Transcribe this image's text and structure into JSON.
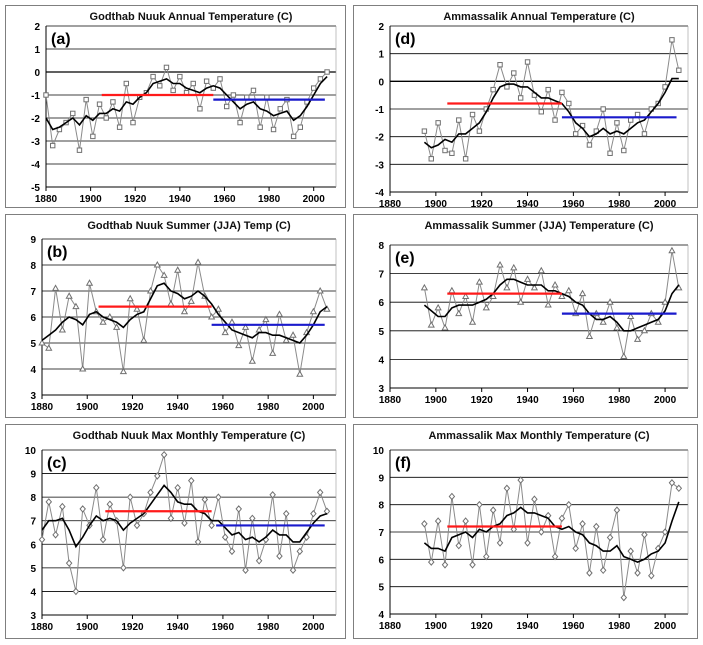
{
  "colors": {
    "mean_early": "#ff1a1a",
    "mean_late": "#1a1acc",
    "line_smooth": "#000000",
    "line_raw": "#8a8a8a",
    "marker": "#707070",
    "grid": "#000000"
  },
  "chart_data": [
    {
      "id": "a",
      "label": "(a)",
      "title": "Godthab Nuuk Annual Temperature (C)",
      "type": "line",
      "xlim": [
        1880,
        2010
      ],
      "ylim": [
        -5,
        2
      ],
      "xticks": [
        "1880",
        "1900",
        "1920",
        "1940",
        "1960",
        "1980",
        "2000"
      ],
      "yticks": [
        "-5",
        "-4",
        "-3",
        "-2",
        "-1",
        "0",
        "1",
        "2"
      ],
      "marker": "square",
      "grid": true,
      "x": [
        1880,
        1883,
        1886,
        1889,
        1892,
        1895,
        1898,
        1901,
        1904,
        1907,
        1910,
        1913,
        1916,
        1919,
        1922,
        1925,
        1928,
        1931,
        1934,
        1937,
        1940,
        1943,
        1946,
        1949,
        1952,
        1955,
        1958,
        1961,
        1964,
        1967,
        1970,
        1973,
        1976,
        1979,
        1982,
        1985,
        1988,
        1991,
        1994,
        1997,
        2000,
        2003,
        2006
      ],
      "series": [
        {
          "role": "annual",
          "values": [
            -1.0,
            -3.2,
            -2.5,
            -2.2,
            -1.8,
            -3.4,
            -1.2,
            -2.8,
            -1.4,
            -2.0,
            -1.3,
            -2.4,
            -0.5,
            -2.2,
            -1.1,
            -0.9,
            -0.2,
            -0.6,
            0.2,
            -0.8,
            -0.2,
            -0.9,
            -0.5,
            -1.6,
            -0.4,
            -0.7,
            -0.3,
            -1.5,
            -1.0,
            -2.2,
            -1.1,
            -0.8,
            -2.4,
            -1.1,
            -2.5,
            -1.6,
            -1.2,
            -2.8,
            -2.4,
            -1.3,
            -0.7,
            -0.3,
            0.0
          ]
        },
        {
          "role": "smoothed",
          "values": [
            -2.0,
            -2.5,
            -2.4,
            -2.2,
            -2.0,
            -2.3,
            -1.9,
            -2.1,
            -1.8,
            -1.8,
            -1.6,
            -1.7,
            -1.3,
            -1.4,
            -1.1,
            -0.9,
            -0.5,
            -0.4,
            -0.3,
            -0.5,
            -0.5,
            -0.7,
            -0.8,
            -0.9,
            -0.7,
            -0.6,
            -0.7,
            -1.0,
            -1.3,
            -1.6,
            -1.4,
            -1.3,
            -1.6,
            -1.7,
            -1.9,
            -1.8,
            -1.7,
            -2.1,
            -1.9,
            -1.5,
            -1.0,
            -0.5,
            -0.2
          ]
        }
      ],
      "means": [
        {
          "period": [
            1905,
            1955
          ],
          "value": -1.0
        },
        {
          "period": [
            1955,
            2005
          ],
          "value": -1.2
        }
      ]
    },
    {
      "id": "d",
      "label": "(d)",
      "title": "Ammassalik Annual Temperature (C)",
      "type": "line",
      "xlim": [
        1880,
        2010
      ],
      "ylim": [
        -4,
        2
      ],
      "xticks": [
        "1880",
        "1900",
        "1920",
        "1940",
        "1960",
        "1980",
        "2000"
      ],
      "yticks": [
        "-4",
        "-3",
        "-2",
        "-1",
        "0",
        "1",
        "2"
      ],
      "marker": "square",
      "grid": true,
      "x": [
        1895,
        1898,
        1901,
        1904,
        1907,
        1910,
        1913,
        1916,
        1919,
        1922,
        1925,
        1928,
        1931,
        1934,
        1937,
        1940,
        1943,
        1946,
        1949,
        1952,
        1955,
        1958,
        1961,
        1964,
        1967,
        1970,
        1973,
        1976,
        1979,
        1982,
        1985,
        1988,
        1991,
        1994,
        1997,
        2000,
        2003,
        2006
      ],
      "series": [
        {
          "role": "annual",
          "values": [
            -1.8,
            -2.8,
            -1.5,
            -2.5,
            -2.6,
            -1.4,
            -2.8,
            -1.2,
            -1.8,
            -1.0,
            -0.3,
            0.6,
            -0.2,
            0.3,
            -0.6,
            0.7,
            -0.5,
            -1.1,
            -0.3,
            -1.4,
            -0.4,
            -0.8,
            -1.9,
            -1.6,
            -2.3,
            -1.8,
            -1.0,
            -2.6,
            -1.5,
            -2.5,
            -1.4,
            -1.2,
            -1.9,
            -1.0,
            -0.8,
            -0.2,
            1.5,
            0.4
          ]
        },
        {
          "role": "smoothed",
          "values": [
            -2.2,
            -2.4,
            -2.3,
            -2.1,
            -2.2,
            -1.9,
            -1.9,
            -1.7,
            -1.5,
            -1.1,
            -0.6,
            -0.2,
            -0.1,
            -0.1,
            -0.2,
            -0.2,
            -0.4,
            -0.6,
            -0.6,
            -0.7,
            -0.8,
            -1.1,
            -1.5,
            -1.7,
            -2.0,
            -1.9,
            -1.7,
            -1.9,
            -1.8,
            -1.9,
            -1.7,
            -1.5,
            -1.4,
            -1.1,
            -0.8,
            -0.4,
            0.1,
            0.1
          ]
        }
      ],
      "means": [
        {
          "period": [
            1905,
            1955
          ],
          "value": -0.8
        },
        {
          "period": [
            1955,
            2005
          ],
          "value": -1.3
        }
      ]
    },
    {
      "id": "b",
      "label": "(b)",
      "title": "Godthab Nuuk Summer (JJA) Temp (C)",
      "type": "line",
      "xlim": [
        1880,
        2010
      ],
      "ylim": [
        3,
        9
      ],
      "xticks": [
        "1880",
        "1900",
        "1920",
        "1940",
        "1960",
        "1980",
        "2000"
      ],
      "yticks": [
        "3",
        "4",
        "5",
        "6",
        "7",
        "8",
        "9"
      ],
      "marker": "triangle",
      "grid": true,
      "x": [
        1880,
        1883,
        1886,
        1889,
        1892,
        1895,
        1898,
        1901,
        1904,
        1907,
        1910,
        1913,
        1916,
        1919,
        1922,
        1925,
        1928,
        1931,
        1934,
        1937,
        1940,
        1943,
        1946,
        1949,
        1952,
        1955,
        1958,
        1961,
        1964,
        1967,
        1970,
        1973,
        1976,
        1979,
        1982,
        1985,
        1988,
        1991,
        1994,
        1997,
        2000,
        2003,
        2006
      ],
      "series": [
        {
          "role": "summer",
          "values": [
            5.0,
            4.8,
            7.1,
            5.5,
            6.8,
            6.4,
            4.0,
            7.3,
            6.2,
            5.8,
            6.0,
            5.6,
            3.9,
            6.7,
            6.3,
            5.1,
            7.0,
            8.0,
            7.6,
            6.5,
            7.8,
            6.2,
            6.6,
            8.1,
            6.8,
            6.0,
            6.3,
            5.4,
            5.8,
            4.9,
            5.6,
            4.3,
            5.5,
            5.9,
            4.6,
            6.1,
            5.1,
            5.3,
            3.8,
            5.4,
            6.2,
            7.0,
            6.3
          ]
        },
        {
          "role": "smoothed",
          "values": [
            5.1,
            5.3,
            5.5,
            5.8,
            6.0,
            5.9,
            5.7,
            6.1,
            6.2,
            6.0,
            5.9,
            5.8,
            5.6,
            5.9,
            6.1,
            6.2,
            6.7,
            7.2,
            7.3,
            7.0,
            6.9,
            6.7,
            6.8,
            7.0,
            6.8,
            6.5,
            6.1,
            5.8,
            5.5,
            5.4,
            5.3,
            5.2,
            5.4,
            5.4,
            5.3,
            5.3,
            5.2,
            5.1,
            5.0,
            5.3,
            5.7,
            6.2,
            6.4
          ]
        }
      ],
      "means": [
        {
          "period": [
            1905,
            1955
          ],
          "value": 6.4
        },
        {
          "period": [
            1955,
            2005
          ],
          "value": 5.7
        }
      ]
    },
    {
      "id": "e",
      "label": "(e)",
      "title": "Ammassalik Summer (JJA) Temperature (C)",
      "type": "line",
      "xlim": [
        1880,
        2010
      ],
      "ylim": [
        3,
        8
      ],
      "xticks": [
        "1880",
        "1900",
        "1920",
        "1940",
        "1960",
        "1980",
        "2000"
      ],
      "yticks": [
        "3",
        "4",
        "5",
        "6",
        "7",
        "8"
      ],
      "marker": "triangle",
      "grid": true,
      "x": [
        1895,
        1898,
        1901,
        1904,
        1907,
        1910,
        1913,
        1916,
        1919,
        1922,
        1925,
        1928,
        1931,
        1934,
        1937,
        1940,
        1943,
        1946,
        1949,
        1952,
        1955,
        1958,
        1961,
        1964,
        1967,
        1970,
        1973,
        1976,
        1979,
        1982,
        1985,
        1988,
        1991,
        1994,
        1997,
        2000,
        2003,
        2006
      ],
      "series": [
        {
          "role": "summer",
          "values": [
            6.5,
            5.2,
            5.8,
            5.1,
            6.4,
            5.6,
            6.2,
            5.3,
            6.7,
            5.8,
            6.2,
            7.3,
            6.5,
            7.2,
            6.0,
            6.8,
            6.5,
            7.1,
            5.9,
            6.6,
            6.2,
            6.4,
            5.6,
            6.3,
            4.8,
            5.6,
            5.3,
            6.0,
            5.1,
            4.1,
            5.5,
            4.7,
            5.0,
            5.6,
            5.3,
            6.0,
            7.8,
            6.5
          ]
        },
        {
          "role": "smoothed",
          "values": [
            5.9,
            5.7,
            5.5,
            5.5,
            5.8,
            5.9,
            5.9,
            5.9,
            6.0,
            6.1,
            6.3,
            6.6,
            6.8,
            6.8,
            6.7,
            6.6,
            6.6,
            6.6,
            6.4,
            6.4,
            6.3,
            6.2,
            6.0,
            5.9,
            5.6,
            5.4,
            5.4,
            5.5,
            5.3,
            5.0,
            5.0,
            5.1,
            5.2,
            5.3,
            5.4,
            5.7,
            6.3,
            6.6
          ]
        }
      ],
      "means": [
        {
          "period": [
            1905,
            1955
          ],
          "value": 6.3
        },
        {
          "period": [
            1955,
            2005
          ],
          "value": 5.6
        }
      ]
    },
    {
      "id": "c",
      "label": "(c)",
      "title": "Godthab Nuuk Max Monthly Temperature (C)",
      "type": "line",
      "xlim": [
        1880,
        2010
      ],
      "ylim": [
        3,
        10
      ],
      "xticks": [
        "1880",
        "1900",
        "1920",
        "1940",
        "1960",
        "1980",
        "2000"
      ],
      "yticks": [
        "3",
        "4",
        "5",
        "6",
        "7",
        "8",
        "9",
        "10"
      ],
      "marker": "diamond",
      "grid": true,
      "x": [
        1880,
        1883,
        1886,
        1889,
        1892,
        1895,
        1898,
        1901,
        1904,
        1907,
        1910,
        1913,
        1916,
        1919,
        1922,
        1925,
        1928,
        1931,
        1934,
        1937,
        1940,
        1943,
        1946,
        1949,
        1952,
        1955,
        1958,
        1961,
        1964,
        1967,
        1970,
        1973,
        1976,
        1979,
        1982,
        1985,
        1988,
        1991,
        1994,
        1997,
        2000,
        2003,
        2006
      ],
      "series": [
        {
          "role": "maxmonth",
          "values": [
            6.2,
            7.8,
            6.4,
            7.6,
            5.2,
            4.0,
            7.5,
            6.8,
            8.4,
            6.2,
            7.7,
            7.0,
            5.0,
            8.0,
            6.8,
            7.3,
            8.2,
            8.9,
            9.8,
            7.1,
            8.4,
            6.9,
            8.7,
            6.1,
            7.9,
            6.8,
            8.0,
            6.3,
            5.7,
            7.5,
            4.9,
            7.1,
            5.3,
            6.2,
            8.1,
            5.5,
            7.3,
            4.9,
            5.7,
            6.3,
            7.3,
            8.2,
            7.4
          ]
        },
        {
          "role": "smoothed",
          "values": [
            6.6,
            7.0,
            7.0,
            7.1,
            6.6,
            5.9,
            6.3,
            6.8,
            7.2,
            7.0,
            7.1,
            7.0,
            6.6,
            6.9,
            7.1,
            7.3,
            7.7,
            8.1,
            8.5,
            8.2,
            7.8,
            7.7,
            7.7,
            7.4,
            7.3,
            7.0,
            7.0,
            6.7,
            6.4,
            6.5,
            6.2,
            6.3,
            6.1,
            6.3,
            6.6,
            6.4,
            6.4,
            6.1,
            6.1,
            6.5,
            6.9,
            7.2,
            7.3
          ]
        }
      ],
      "means": [
        {
          "period": [
            1908,
            1955
          ],
          "value": 7.4
        },
        {
          "period": [
            1957,
            2005
          ],
          "value": 6.8
        }
      ]
    },
    {
      "id": "f",
      "label": "(f)",
      "title": "Ammassalik Max Monthly Temperature (C)",
      "type": "line",
      "xlim": [
        1880,
        2010
      ],
      "ylim": [
        4,
        10
      ],
      "xticks": [
        "1880",
        "1900",
        "1920",
        "1940",
        "1960",
        "1980",
        "2000"
      ],
      "yticks": [
        "4",
        "5",
        "6",
        "7",
        "8",
        "9",
        "10"
      ],
      "marker": "diamond",
      "grid": true,
      "x": [
        1895,
        1898,
        1901,
        1904,
        1907,
        1910,
        1913,
        1916,
        1919,
        1922,
        1925,
        1928,
        1931,
        1934,
        1937,
        1940,
        1943,
        1946,
        1949,
        1952,
        1955,
        1958,
        1961,
        1964,
        1967,
        1970,
        1973,
        1976,
        1979,
        1982,
        1985,
        1988,
        1991,
        1994,
        1997,
        2000,
        2003,
        2006
      ],
      "series": [
        {
          "role": "maxmonth",
          "values": [
            7.3,
            5.9,
            7.4,
            5.8,
            8.3,
            6.5,
            7.4,
            5.8,
            8.0,
            6.1,
            7.8,
            6.6,
            8.6,
            7.1,
            8.9,
            6.6,
            8.2,
            7.0,
            7.6,
            6.1,
            7.5,
            8.0,
            6.4,
            7.3,
            5.5,
            7.2,
            5.6,
            6.8,
            7.8,
            4.6,
            6.3,
            5.5,
            6.9,
            5.4,
            6.4,
            7.0,
            8.8,
            8.6
          ]
        },
        {
          "role": "smoothed",
          "values": [
            6.6,
            6.4,
            6.4,
            6.3,
            6.8,
            6.9,
            7.0,
            6.8,
            7.1,
            7.0,
            7.2,
            7.3,
            7.6,
            7.7,
            7.9,
            7.7,
            7.7,
            7.6,
            7.5,
            7.2,
            7.1,
            7.2,
            7.0,
            6.9,
            6.6,
            6.5,
            6.3,
            6.3,
            6.5,
            6.1,
            6.0,
            5.9,
            6.0,
            6.2,
            6.3,
            6.6,
            7.4,
            8.1
          ]
        }
      ],
      "means": [
        {
          "period": [
            1905,
            1955
          ],
          "value": 7.2
        }
      ]
    }
  ]
}
